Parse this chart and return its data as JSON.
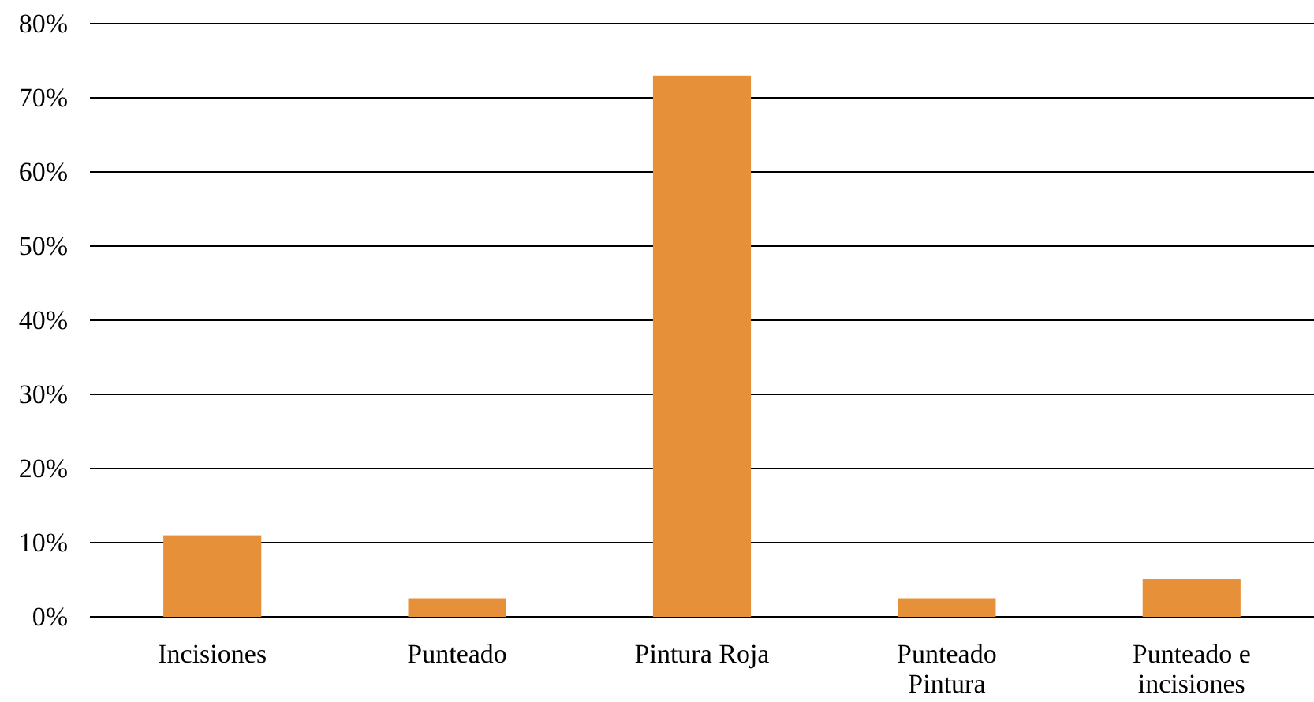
{
  "chart_data": {
    "type": "bar",
    "categories": [
      "Incisiones",
      "Punteado",
      "Pintura Roja",
      "Punteado Pintura",
      "Punteado e incisiones"
    ],
    "values": [
      11,
      2.5,
      73,
      2.5,
      5.1
    ],
    "color": "#e6913a",
    "ylim": [
      0,
      80
    ],
    "yticks": [
      {
        "value": 0,
        "label": "0%"
      },
      {
        "value": 10,
        "label": "10%"
      },
      {
        "value": 20,
        "label": "20%"
      },
      {
        "value": 30,
        "label": "30%"
      },
      {
        "value": 40,
        "label": "40%"
      },
      {
        "value": 50,
        "label": "50%"
      },
      {
        "value": 60,
        "label": "60%"
      },
      {
        "value": 70,
        "label": "70%"
      },
      {
        "value": 80,
        "label": "80%"
      }
    ],
    "grid": "y"
  }
}
